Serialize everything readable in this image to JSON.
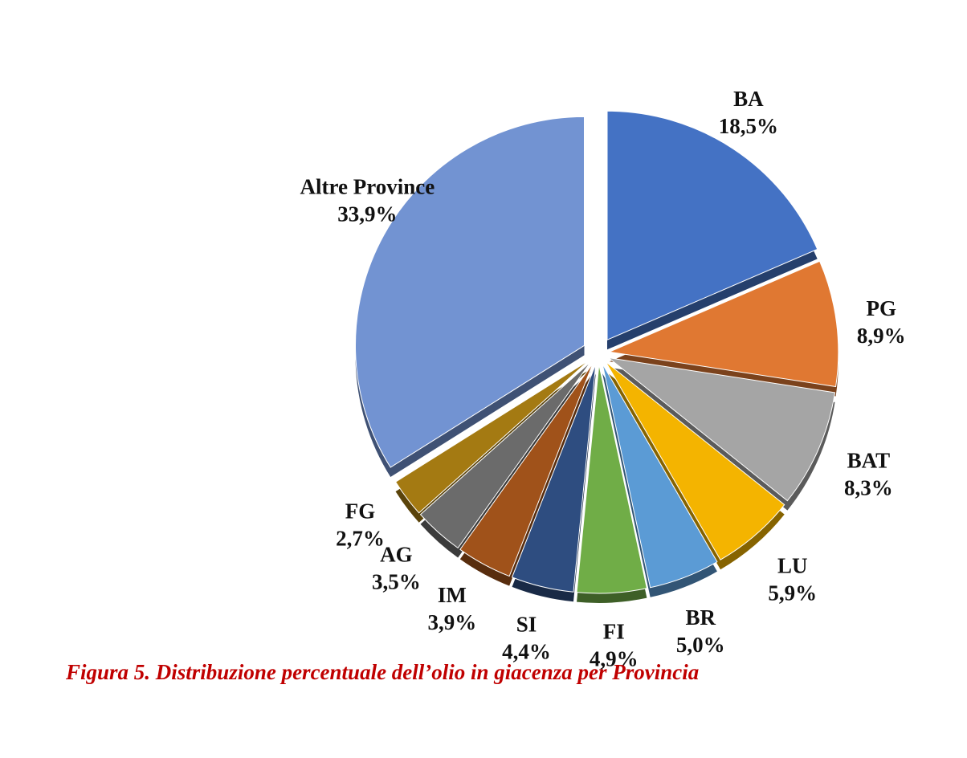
{
  "caption": "Figura 5. Distribuzione percentuale dell’olio in giacenza per Provincia",
  "chart_data": {
    "type": "pie",
    "style": "3d-exploded",
    "unit": "%",
    "slices": [
      {
        "label": "BA",
        "value": 18.5,
        "display": "18,5%",
        "color": "#4472c4"
      },
      {
        "label": "PG",
        "value": 8.9,
        "display": "8,9%",
        "color": "#e07832"
      },
      {
        "label": "BAT",
        "value": 8.3,
        "display": "8,3%",
        "color": "#a5a5a5"
      },
      {
        "label": "LU",
        "value": 5.9,
        "display": "5,9%",
        "color": "#f4b400"
      },
      {
        "label": "BR",
        "value": 5.0,
        "display": "5,0%",
        "color": "#5b9bd5"
      },
      {
        "label": "FI",
        "value": 4.9,
        "display": "4,9%",
        "color": "#70ad47"
      },
      {
        "label": "SI",
        "value": 4.4,
        "display": "4,4%",
        "color": "#2e4d80"
      },
      {
        "label": "IM",
        "value": 3.9,
        "display": "3,9%",
        "color": "#a0521a"
      },
      {
        "label": "AG",
        "value": 3.5,
        "display": "3,5%",
        "color": "#6b6b6b"
      },
      {
        "label": "FG",
        "value": 2.7,
        "display": "2,7%",
        "color": "#a47a12"
      },
      {
        "label": "Altre Province",
        "value": 33.9,
        "display": "33,9%",
        "color": "#7293d2"
      }
    ],
    "legend": "none",
    "labels": "outside"
  }
}
